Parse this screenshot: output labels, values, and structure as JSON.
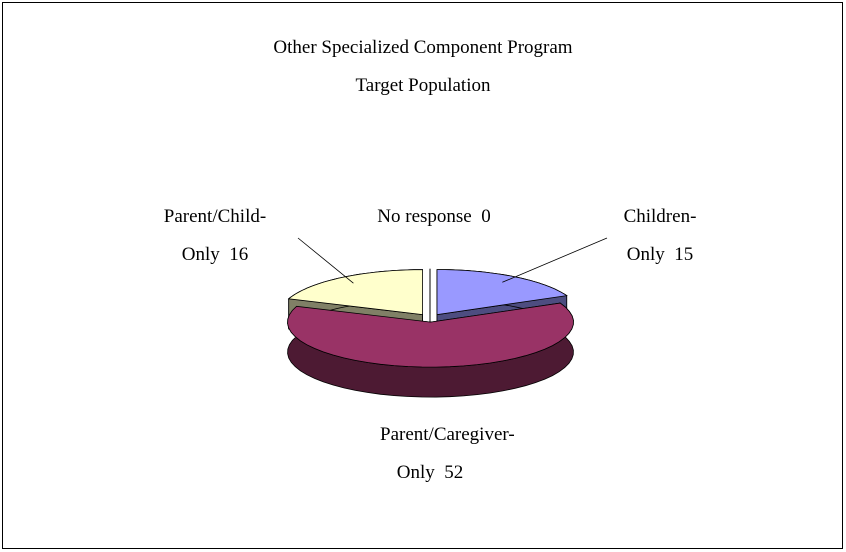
{
  "chart_data": {
    "type": "pie",
    "title": "Other Specialized Component Program Target Population",
    "categories": [
      "Children-Only",
      "Parent/Caregiver-Only",
      "Parent/Child-Only",
      "No response"
    ],
    "values": [
      15,
      52,
      16,
      0
    ],
    "colors": [
      "#9999ff",
      "#993366",
      "#ffffcc",
      "#ccffff"
    ]
  }
}
